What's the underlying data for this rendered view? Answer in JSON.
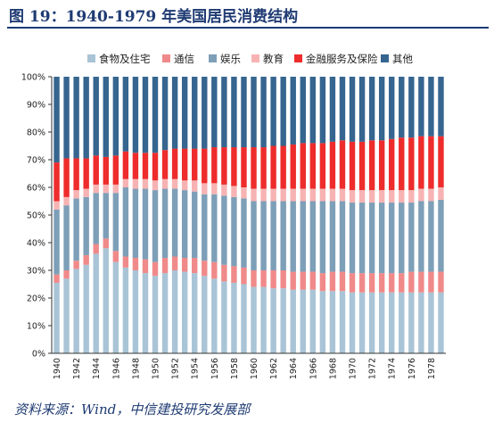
{
  "header": {
    "title": "图 19：1940-1979 年美国居民消费结构"
  },
  "footer": {
    "source": "资料来源：Wind，中信建投研究发展部"
  },
  "colors": {
    "title": "#1f3b73",
    "axis": "#333333"
  },
  "chart_data": {
    "type": "bar",
    "stacked": true,
    "title": "",
    "xlabel": "",
    "ylabel": "",
    "ylim": [
      0,
      100
    ],
    "yticks": [
      "0%",
      "10%",
      "20%",
      "30%",
      "40%",
      "50%",
      "60%",
      "70%",
      "80%",
      "90%",
      "100%"
    ],
    "legend_position": "top",
    "grid": false,
    "categories": [
      "1940",
      "1941",
      "1942",
      "1943",
      "1944",
      "1945",
      "1946",
      "1947",
      "1948",
      "1949",
      "1950",
      "1951",
      "1952",
      "1953",
      "1954",
      "1955",
      "1956",
      "1957",
      "1958",
      "1959",
      "1960",
      "1961",
      "1962",
      "1963",
      "1964",
      "1965",
      "1966",
      "1967",
      "1968",
      "1969",
      "1970",
      "1971",
      "1972",
      "1973",
      "1974",
      "1975",
      "1976",
      "1977",
      "1978",
      "1979"
    ],
    "xtick_labels": [
      "1940",
      "1942",
      "1944",
      "1946",
      "1948",
      "1950",
      "1952",
      "1954",
      "1956",
      "1958",
      "1960",
      "1962",
      "1964",
      "1966",
      "1968",
      "1970",
      "1972",
      "1974",
      "1976",
      "1978"
    ],
    "series": [
      {
        "name": "食物及住宅",
        "color": "#a9c4d6",
        "values": [
          25.5,
          27,
          30.5,
          32,
          36,
          38,
          33,
          31,
          30,
          29,
          28,
          29,
          30,
          29.5,
          29,
          28,
          27,
          26,
          25.5,
          25,
          24,
          24,
          23.5,
          23.5,
          23,
          23,
          23,
          22.5,
          22.5,
          22.5,
          22,
          22,
          22,
          22,
          22,
          22,
          22,
          22,
          22,
          22
        ]
      },
      {
        "name": "通信",
        "color": "#f08a8a",
        "values": [
          3,
          3,
          3,
          3.5,
          3.5,
          3.5,
          4,
          4,
          4.5,
          5,
          5,
          5.5,
          5,
          5,
          5.5,
          5.5,
          6,
          6,
          6,
          6,
          6,
          6,
          6.5,
          6.5,
          6.5,
          6.5,
          6.5,
          6.5,
          7,
          7,
          7,
          7,
          7,
          7,
          7,
          7,
          7.5,
          7.5,
          7.5,
          7.5
        ]
      },
      {
        "name": "娱乐",
        "color": "#7e9fb8",
        "values": [
          23.5,
          23.5,
          22.5,
          21,
          18.5,
          16.5,
          21,
          25,
          25,
          25.5,
          26,
          25,
          24.5,
          24.5,
          24,
          24,
          24.5,
          25,
          25,
          25,
          25,
          25,
          25,
          25,
          25.5,
          25.5,
          25.5,
          26,
          25.5,
          25.5,
          25.5,
          25.5,
          25.5,
          25.5,
          25.5,
          25.5,
          25,
          25.5,
          25.5,
          26
        ]
      },
      {
        "name": "教育",
        "color": "#f7b3b3",
        "values": [
          3,
          3,
          3,
          3,
          3,
          3,
          3,
          3,
          3.5,
          3.5,
          3.5,
          3.5,
          3.5,
          3.5,
          4,
          4,
          4,
          4,
          4,
          4,
          4.5,
          4.5,
          4.5,
          4.5,
          4.5,
          4.5,
          4.5,
          4.5,
          4.5,
          4.5,
          4.5,
          4.5,
          4.5,
          4.5,
          4.5,
          4.5,
          4.5,
          4.5,
          4.5,
          4.5
        ]
      },
      {
        "name": "金融服务及保险",
        "color": "#ee2c2c",
        "values": [
          14,
          14,
          11.5,
          11,
          10.5,
          10,
          10.5,
          10,
          9.5,
          9.5,
          10,
          10.5,
          11,
          11.5,
          11.5,
          12.5,
          13,
          13.5,
          14,
          14.5,
          15,
          15,
          15.5,
          15.5,
          16,
          16.5,
          16.5,
          16.5,
          17,
          17.5,
          17.5,
          17.5,
          18,
          18,
          18.5,
          19,
          19,
          19,
          19,
          18.5
        ]
      },
      {
        "name": "其他",
        "color": "#36658f",
        "values": [
          31,
          29.5,
          29.5,
          29.5,
          28.5,
          29,
          28.5,
          27,
          27.5,
          27.5,
          27.5,
          26.5,
          26,
          26,
          26,
          26,
          25.5,
          25.5,
          25.5,
          25.5,
          25.5,
          25.5,
          25,
          25,
          24.5,
          24,
          24,
          24,
          23.5,
          23,
          23.5,
          23.5,
          23,
          23,
          22.5,
          22,
          22,
          21.5,
          21.5,
          21.5
        ]
      }
    ]
  }
}
